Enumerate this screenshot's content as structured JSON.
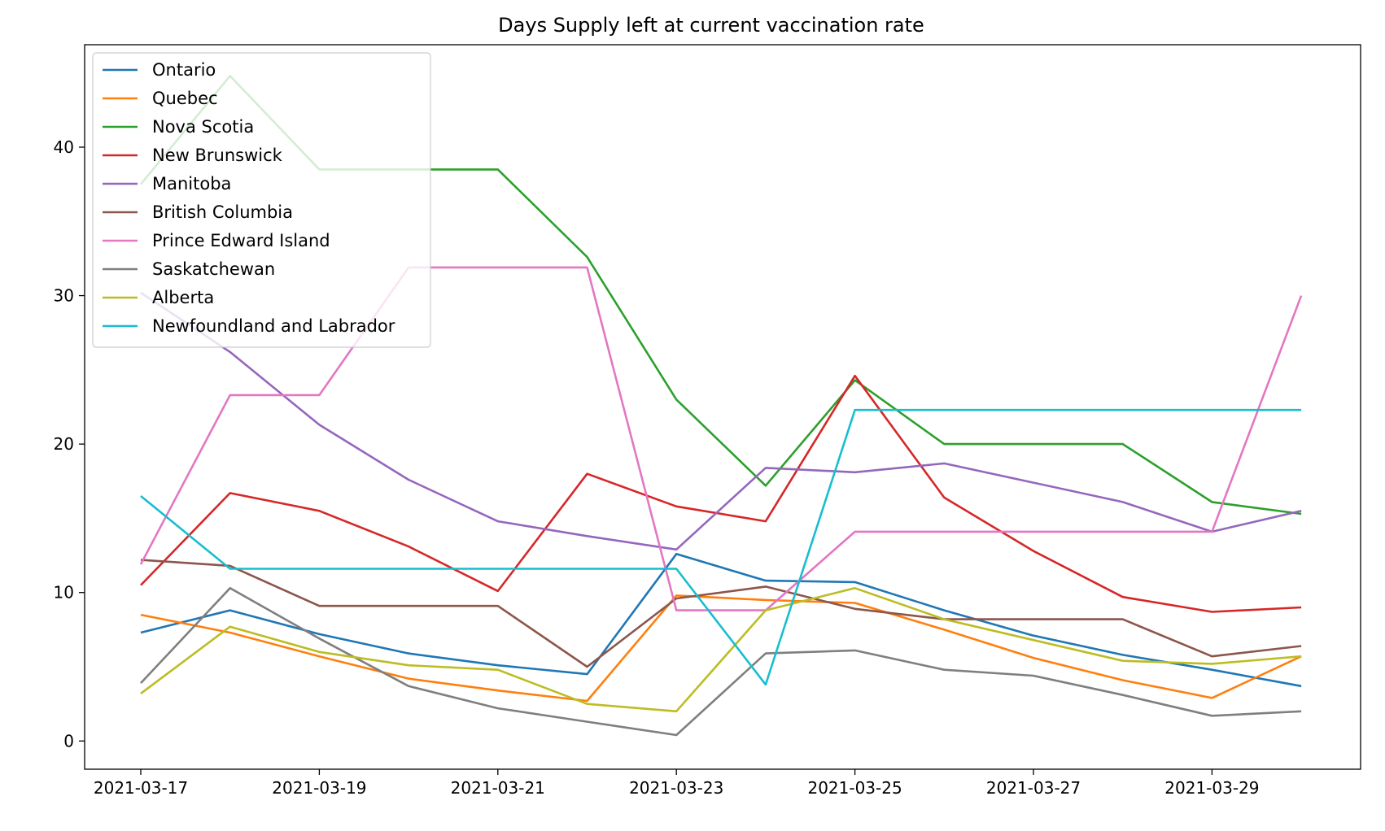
{
  "chart_data": {
    "type": "line",
    "title": "Days Supply left at current vaccination rate",
    "xlabel": "",
    "ylabel": "",
    "x": [
      "2021-03-17",
      "2021-03-18",
      "2021-03-19",
      "2021-03-20",
      "2021-03-21",
      "2021-03-22",
      "2021-03-23",
      "2021-03-24",
      "2021-03-25",
      "2021-03-26",
      "2021-03-27",
      "2021-03-28",
      "2021-03-29",
      "2021-03-30"
    ],
    "x_ticks": [
      "2021-03-17",
      "2021-03-19",
      "2021-03-21",
      "2021-03-23",
      "2021-03-25",
      "2021-03-27",
      "2021-03-29"
    ],
    "y_ticks": [
      0,
      10,
      20,
      30,
      40
    ],
    "ylim": [
      -1.9,
      46.9
    ],
    "grid": false,
    "legend_position": "upper left",
    "series": [
      {
        "name": "Ontario",
        "color": "#1f77b4",
        "values": [
          7.3,
          8.8,
          7.2,
          5.9,
          5.1,
          4.5,
          12.6,
          10.8,
          10.7,
          8.8,
          7.1,
          5.8,
          4.8,
          3.7
        ]
      },
      {
        "name": "Quebec",
        "color": "#ff7f0e",
        "values": [
          8.5,
          7.3,
          5.7,
          4.2,
          3.4,
          2.7,
          9.8,
          9.5,
          9.3,
          7.5,
          5.6,
          4.1,
          2.9,
          5.7
        ]
      },
      {
        "name": "Nova Scotia",
        "color": "#2ca02c",
        "values": [
          37.5,
          44.8,
          38.5,
          38.5,
          38.5,
          32.6,
          23.0,
          17.2,
          24.3,
          20.0,
          20.0,
          20.0,
          16.1,
          15.3
        ]
      },
      {
        "name": "New Brunswick",
        "color": "#d62728",
        "values": [
          10.5,
          16.7,
          15.5,
          13.1,
          10.1,
          18.0,
          15.8,
          14.8,
          24.6,
          16.4,
          12.8,
          9.7,
          8.7,
          9.0
        ]
      },
      {
        "name": "Manitoba",
        "color": "#9467bd",
        "values": [
          30.2,
          26.2,
          21.3,
          17.6,
          14.8,
          13.8,
          12.9,
          18.4,
          18.1,
          18.7,
          17.4,
          16.1,
          14.1,
          15.5
        ]
      },
      {
        "name": "British Columbia",
        "color": "#8c564b",
        "values": [
          12.2,
          11.8,
          9.1,
          9.1,
          9.1,
          5.0,
          9.6,
          10.4,
          8.9,
          8.2,
          8.2,
          8.2,
          5.7,
          6.4
        ]
      },
      {
        "name": "Prince Edward Island",
        "color": "#e377c2",
        "values": [
          11.9,
          23.3,
          23.3,
          31.9,
          31.9,
          31.9,
          8.8,
          8.8,
          14.1,
          14.1,
          14.1,
          14.1,
          14.1,
          30.0
        ]
      },
      {
        "name": "Saskatchewan",
        "color": "#7f7f7f",
        "values": [
          3.9,
          10.3,
          6.9,
          3.7,
          2.2,
          1.3,
          0.4,
          5.9,
          6.1,
          4.8,
          4.4,
          3.1,
          1.7,
          2.0
        ]
      },
      {
        "name": "Alberta",
        "color": "#bcbd22",
        "values": [
          3.2,
          7.7,
          6.0,
          5.1,
          4.8,
          2.5,
          2.0,
          8.8,
          10.3,
          8.2,
          6.8,
          5.4,
          5.2,
          5.7
        ]
      },
      {
        "name": "Newfoundland and Labrador",
        "color": "#17becf",
        "values": [
          16.5,
          11.6,
          11.6,
          11.6,
          11.6,
          11.6,
          11.6,
          3.8,
          22.3,
          22.3,
          22.3,
          22.3,
          22.3,
          22.3
        ]
      }
    ]
  }
}
